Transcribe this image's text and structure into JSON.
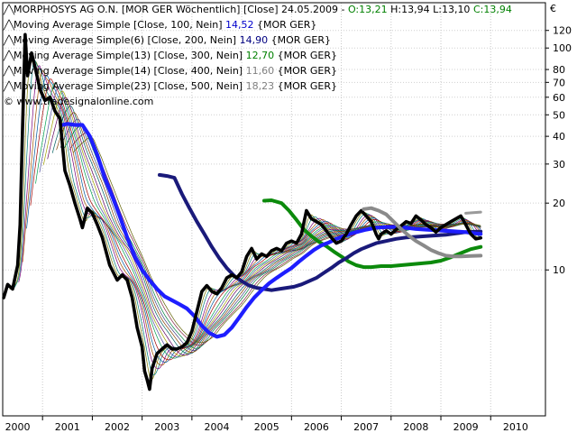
{
  "legend": {
    "main": {
      "prefix": "MORPHOSYS AG O.N. [MOR GER  Wöchentlich] [Close] 24.05.2009 - ",
      "o": "O:13,21",
      "h": "H:13,94",
      "l": "L:13,10",
      "c": "C:13,94"
    },
    "rows": [
      {
        "text": "Moving Average Simple [Close, 100, Nein]",
        "value": "14,52",
        "suffix": "{MOR GER}",
        "value_color": "#0000cc"
      },
      {
        "text": "Moving Average Simple(6) [Close, 200, Nein]",
        "value": "14,90",
        "suffix": "{MOR GER}",
        "value_color": "#000080"
      },
      {
        "text": "Moving Average Simple(13) [Close, 300, Nein]",
        "value": "12,70",
        "suffix": "{MOR GER}",
        "value_color": "#008000"
      },
      {
        "text": "Moving Average Simple(14) [Close, 400, Nein]",
        "value": "11,60",
        "suffix": "{MOR GER}",
        "value_color": "#808080"
      },
      {
        "text": "Moving Average Simple(23) [Close, 500, Nein]",
        "value": "18,23",
        "suffix": "{MOR GER}",
        "value_color": "#808080"
      }
    ],
    "watermark": "© www.tradesignalonline.com"
  },
  "chart_data": {
    "type": "line",
    "currency_label": "€",
    "y_scale": "log",
    "ylim": [
      2.2,
      160
    ],
    "xlim": [
      1999.7,
      2010.6
    ],
    "y_ticks": [
      10,
      20,
      30,
      40,
      50,
      60,
      70,
      80,
      100,
      120
    ],
    "x_ticks": [
      "2000",
      "2001",
      "2002",
      "2003",
      "2004",
      "2005",
      "2006",
      "2007",
      "2008",
      "2009",
      "2010"
    ],
    "x_tick_positions": [
      2000,
      2001,
      2002,
      2003,
      2004,
      2005,
      2006,
      2007,
      2008,
      2009,
      2010
    ],
    "series": [
      {
        "role": "price",
        "color": "#000000",
        "width": 3.6,
        "points": [
          [
            1999.72,
            7.5
          ],
          [
            1999.8,
            8.6
          ],
          [
            1999.9,
            8.2
          ],
          [
            2000.0,
            10.5
          ],
          [
            2000.05,
            16
          ],
          [
            2000.1,
            45
          ],
          [
            2000.15,
            115
          ],
          [
            2000.2,
            75
          ],
          [
            2000.28,
            95
          ],
          [
            2000.36,
            80
          ],
          [
            2000.45,
            65
          ],
          [
            2000.55,
            58
          ],
          [
            2000.65,
            60
          ],
          [
            2000.75,
            52
          ],
          [
            2000.85,
            48
          ],
          [
            2000.95,
            28
          ],
          [
            2001.05,
            24
          ],
          [
            2001.15,
            20
          ],
          [
            2001.25,
            17
          ],
          [
            2001.3,
            15.5
          ],
          [
            2001.4,
            19
          ],
          [
            2001.5,
            18
          ],
          [
            2001.6,
            16
          ],
          [
            2001.7,
            14
          ],
          [
            2001.85,
            10.5
          ],
          [
            2002.0,
            9
          ],
          [
            2002.1,
            9.5
          ],
          [
            2002.2,
            9
          ],
          [
            2002.3,
            7.5
          ],
          [
            2002.4,
            5.5
          ],
          [
            2002.5,
            4.5
          ],
          [
            2002.55,
            3.5
          ],
          [
            2002.6,
            3.2
          ],
          [
            2002.65,
            2.9
          ],
          [
            2002.7,
            3.6
          ],
          [
            2002.8,
            4.2
          ],
          [
            2002.9,
            4.4
          ],
          [
            2003.0,
            4.6
          ],
          [
            2003.1,
            4.4
          ],
          [
            2003.2,
            4.4
          ],
          [
            2003.3,
            4.5
          ],
          [
            2003.4,
            4.7
          ],
          [
            2003.5,
            5.3
          ],
          [
            2003.6,
            6.5
          ],
          [
            2003.7,
            8.0
          ],
          [
            2003.8,
            8.5
          ],
          [
            2003.9,
            8.0
          ],
          [
            2004.0,
            7.8
          ],
          [
            2004.1,
            8.3
          ],
          [
            2004.2,
            9.2
          ],
          [
            2004.3,
            9.5
          ],
          [
            2004.4,
            9.2
          ],
          [
            2004.5,
            9.8
          ],
          [
            2004.6,
            11.5
          ],
          [
            2004.7,
            12.5
          ],
          [
            2004.8,
            11.2
          ],
          [
            2004.9,
            11.8
          ],
          [
            2005.0,
            11.5
          ],
          [
            2005.1,
            12.2
          ],
          [
            2005.2,
            12.5
          ],
          [
            2005.3,
            12.2
          ],
          [
            2005.4,
            13.2
          ],
          [
            2005.5,
            13.5
          ],
          [
            2005.6,
            13.2
          ],
          [
            2005.7,
            14.5
          ],
          [
            2005.8,
            18.5
          ],
          [
            2005.9,
            17
          ],
          [
            2006.0,
            16.5
          ],
          [
            2006.1,
            16
          ],
          [
            2006.2,
            15
          ],
          [
            2006.3,
            14
          ],
          [
            2006.4,
            13.2
          ],
          [
            2006.5,
            13.5
          ],
          [
            2006.6,
            14.5
          ],
          [
            2006.7,
            16
          ],
          [
            2006.8,
            17.5
          ],
          [
            2006.9,
            18.5
          ],
          [
            2007.0,
            17.5
          ],
          [
            2007.1,
            16.5
          ],
          [
            2007.15,
            15.5
          ],
          [
            2007.2,
            14.5
          ],
          [
            2007.25,
            13.8
          ],
          [
            2007.3,
            14.5
          ],
          [
            2007.4,
            15
          ],
          [
            2007.5,
            14.5
          ],
          [
            2007.6,
            15.2
          ],
          [
            2007.7,
            15.8
          ],
          [
            2007.8,
            16.5
          ],
          [
            2007.9,
            16.2
          ],
          [
            2008.0,
            17.5
          ],
          [
            2008.1,
            16.8
          ],
          [
            2008.2,
            16
          ],
          [
            2008.3,
            15.5
          ],
          [
            2008.4,
            14.8
          ],
          [
            2008.5,
            15.5
          ],
          [
            2008.6,
            16
          ],
          [
            2008.7,
            16.5
          ],
          [
            2008.8,
            17
          ],
          [
            2008.9,
            17.5
          ],
          [
            2009.0,
            16
          ],
          [
            2009.1,
            14.5
          ],
          [
            2009.2,
            13.8
          ],
          [
            2009.3,
            13.94
          ]
        ]
      },
      {
        "role": "ma100",
        "color": "#1e1eff",
        "width": 4.2,
        "points": [
          [
            2000.9,
            45
          ],
          [
            2001.0,
            45.5
          ],
          [
            2001.15,
            45
          ],
          [
            2001.3,
            45
          ],
          [
            2001.45,
            40
          ],
          [
            2001.6,
            33
          ],
          [
            2001.75,
            26
          ],
          [
            2001.9,
            21.5
          ],
          [
            2002.05,
            17.5
          ],
          [
            2002.2,
            14
          ],
          [
            2002.35,
            11.5
          ],
          [
            2002.5,
            10
          ],
          [
            2002.65,
            9
          ],
          [
            2002.8,
            8.2
          ],
          [
            2002.95,
            7.6
          ],
          [
            2003.1,
            7.3
          ],
          [
            2003.25,
            7
          ],
          [
            2003.4,
            6.7
          ],
          [
            2003.55,
            6.2
          ],
          [
            2003.7,
            5.6
          ],
          [
            2003.85,
            5.2
          ],
          [
            2004.0,
            5
          ],
          [
            2004.15,
            5.1
          ],
          [
            2004.3,
            5.5
          ],
          [
            2004.45,
            6.1
          ],
          [
            2004.6,
            6.8
          ],
          [
            2004.75,
            7.5
          ],
          [
            2004.9,
            8.1
          ],
          [
            2005.05,
            8.7
          ],
          [
            2005.2,
            9.2
          ],
          [
            2005.35,
            9.7
          ],
          [
            2005.5,
            10.2
          ],
          [
            2005.65,
            10.9
          ],
          [
            2005.8,
            11.6
          ],
          [
            2005.95,
            12.3
          ],
          [
            2006.1,
            12.9
          ],
          [
            2006.25,
            13.3
          ],
          [
            2006.4,
            13.8
          ],
          [
            2006.55,
            14.2
          ],
          [
            2006.7,
            14.6
          ],
          [
            2006.85,
            14.9
          ],
          [
            2007.0,
            15.2
          ],
          [
            2007.2,
            15.5
          ],
          [
            2007.4,
            15.6
          ],
          [
            2007.6,
            15.6
          ],
          [
            2007.8,
            15.5
          ],
          [
            2008.0,
            15.3
          ],
          [
            2008.2,
            15.2
          ],
          [
            2008.4,
            15.1
          ],
          [
            2008.6,
            15
          ],
          [
            2008.8,
            14.9
          ],
          [
            2009.0,
            14.8
          ],
          [
            2009.2,
            14.6
          ],
          [
            2009.3,
            14.52
          ]
        ]
      },
      {
        "role": "ma200",
        "color": "#1a1a7a",
        "width": 4.0,
        "points": [
          [
            2002.85,
            26.8
          ],
          [
            2003.0,
            26.5
          ],
          [
            2003.15,
            26
          ],
          [
            2003.3,
            22
          ],
          [
            2003.45,
            19
          ],
          [
            2003.6,
            16.5
          ],
          [
            2003.75,
            14.5
          ],
          [
            2003.9,
            12.7
          ],
          [
            2004.05,
            11.3
          ],
          [
            2004.2,
            10.2
          ],
          [
            2004.35,
            9.4
          ],
          [
            2004.5,
            8.9
          ],
          [
            2004.65,
            8.5
          ],
          [
            2004.8,
            8.3
          ],
          [
            2004.95,
            8.2
          ],
          [
            2005.1,
            8.1
          ],
          [
            2005.25,
            8.2
          ],
          [
            2005.4,
            8.3
          ],
          [
            2005.55,
            8.4
          ],
          [
            2005.7,
            8.6
          ],
          [
            2005.85,
            8.9
          ],
          [
            2006.0,
            9.2
          ],
          [
            2006.15,
            9.7
          ],
          [
            2006.3,
            10.2
          ],
          [
            2006.45,
            10.8
          ],
          [
            2006.6,
            11.3
          ],
          [
            2006.75,
            11.9
          ],
          [
            2006.9,
            12.4
          ],
          [
            2007.05,
            12.8
          ],
          [
            2007.2,
            13.2
          ],
          [
            2007.4,
            13.5
          ],
          [
            2007.6,
            13.8
          ],
          [
            2007.8,
            14
          ],
          [
            2008.0,
            14.1
          ],
          [
            2008.2,
            14.2
          ],
          [
            2008.4,
            14.3
          ],
          [
            2008.6,
            14.4
          ],
          [
            2008.8,
            14.6
          ],
          [
            2009.0,
            14.8
          ],
          [
            2009.3,
            14.9
          ]
        ]
      },
      {
        "role": "ma300",
        "color": "#0c8a0c",
        "width": 4.0,
        "points": [
          [
            2004.95,
            20.5
          ],
          [
            2005.1,
            20.6
          ],
          [
            2005.3,
            20
          ],
          [
            2005.45,
            18.5
          ],
          [
            2005.6,
            16.8
          ],
          [
            2005.75,
            15.2
          ],
          [
            2005.9,
            14.2
          ],
          [
            2006.05,
            13.4
          ],
          [
            2006.2,
            12.8
          ],
          [
            2006.35,
            12.1
          ],
          [
            2006.5,
            11.5
          ],
          [
            2006.65,
            10.9
          ],
          [
            2006.8,
            10.5
          ],
          [
            2006.95,
            10.3
          ],
          [
            2007.1,
            10.3
          ],
          [
            2007.3,
            10.4
          ],
          [
            2007.5,
            10.4
          ],
          [
            2007.7,
            10.5
          ],
          [
            2007.9,
            10.6
          ],
          [
            2008.1,
            10.7
          ],
          [
            2008.3,
            10.8
          ],
          [
            2008.5,
            11
          ],
          [
            2008.7,
            11.4
          ],
          [
            2008.9,
            11.9
          ],
          [
            2009.1,
            12.4
          ],
          [
            2009.3,
            12.7
          ]
        ]
      },
      {
        "role": "ma400",
        "color": "#8a8a8a",
        "width": 4.0,
        "points": [
          [
            2006.95,
            18.8
          ],
          [
            2007.1,
            19
          ],
          [
            2007.25,
            18.5
          ],
          [
            2007.4,
            17.8
          ],
          [
            2007.55,
            16.5
          ],
          [
            2007.7,
            15.3
          ],
          [
            2007.85,
            14.3
          ],
          [
            2008.0,
            13.5
          ],
          [
            2008.15,
            12.9
          ],
          [
            2008.3,
            12.3
          ],
          [
            2008.45,
            11.9
          ],
          [
            2008.6,
            11.6
          ],
          [
            2008.75,
            11.5
          ],
          [
            2008.9,
            11.5
          ],
          [
            2009.1,
            11.55
          ],
          [
            2009.3,
            11.6
          ]
        ]
      },
      {
        "role": "ma500",
        "color": "#9a9a9a",
        "width": 3.0,
        "points": [
          [
            2009.0,
            18
          ],
          [
            2009.15,
            18.1
          ],
          [
            2009.3,
            18.23
          ]
        ]
      }
    ]
  }
}
